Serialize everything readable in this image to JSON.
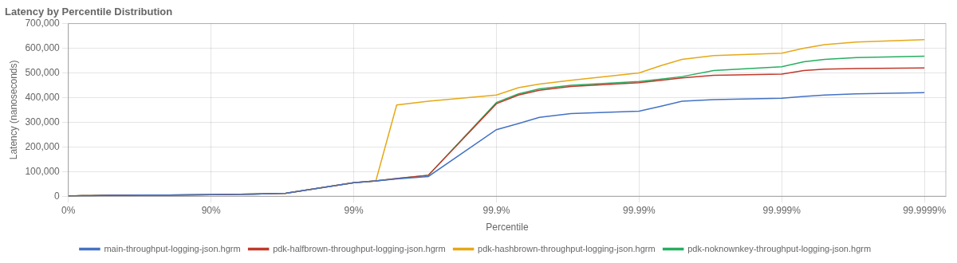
{
  "chart_data": {
    "type": "line",
    "title": "Latency by Percentile Distribution",
    "xlabel": "Percentile",
    "ylabel": "Latency (nanoseconds)",
    "x": [
      0,
      10,
      20,
      30,
      40,
      50,
      60,
      70,
      80,
      90,
      95,
      97,
      99,
      99.3,
      99.5,
      99.7,
      99.9,
      99.93,
      99.95,
      99.97,
      99.99,
      99.993,
      99.995,
      99.997,
      99.999,
      99.9993,
      99.9995,
      99.9997,
      99.9999
    ],
    "series": [
      {
        "name": "main-throughput-logging-json.hgrm",
        "color": "#4472c4",
        "values": [
          1000,
          1500,
          2000,
          2500,
          3000,
          3500,
          4000,
          4500,
          5000,
          6000,
          9000,
          12000,
          55000,
          62000,
          70000,
          80000,
          270000,
          295000,
          320000,
          335000,
          345000,
          365000,
          385000,
          392000,
          397000,
          405000,
          410000,
          415000,
          420000
        ]
      },
      {
        "name": "pdk-halfbrown-throughput-logging-json.hgrm",
        "color": "#c0392b",
        "values": [
          1000,
          1500,
          2000,
          2500,
          3000,
          3500,
          4000,
          4500,
          5000,
          6000,
          9000,
          12000,
          55000,
          62000,
          72000,
          85000,
          375000,
          410000,
          430000,
          445000,
          460000,
          470000,
          480000,
          490000,
          495000,
          510000,
          515000,
          518000,
          520000
        ]
      },
      {
        "name": "pdk-hashbrown-throughput-logging-json.hgrm",
        "color": "#e6a817",
        "values": [
          1000,
          1500,
          2000,
          2500,
          3000,
          3500,
          4000,
          4500,
          5000,
          6000,
          9000,
          12000,
          55000,
          62000,
          370000,
          385000,
          410000,
          440000,
          455000,
          470000,
          500000,
          530000,
          555000,
          570000,
          580000,
          600000,
          615000,
          625000,
          635000
        ]
      },
      {
        "name": "pdk-noknownkey-throughput-logging-json.hgrm",
        "color": "#27ae60",
        "values": [
          1000,
          1500,
          2000,
          2500,
          3000,
          3500,
          4000,
          4500,
          5000,
          6000,
          9000,
          12000,
          55000,
          62000,
          72000,
          85000,
          380000,
          415000,
          435000,
          450000,
          465000,
          475000,
          485000,
          510000,
          525000,
          545000,
          555000,
          562000,
          568000
        ]
      }
    ],
    "xlim": [
      0,
      99.9999292
    ],
    "xticks": [
      {
        "value": 0,
        "label": "0%"
      },
      {
        "value": 90,
        "label": "90%"
      },
      {
        "value": 99,
        "label": "99%"
      },
      {
        "value": 99.9,
        "label": "99.9%"
      },
      {
        "value": 99.99,
        "label": "99.99%"
      },
      {
        "value": 99.999,
        "label": "99.999%"
      },
      {
        "value": 99.9999,
        "label": "99.9999%"
      }
    ],
    "ylim": [
      0,
      700000
    ],
    "yticks": [
      0,
      {
        "value": 100000,
        "label": "100,000"
      },
      {
        "value": 200000,
        "label": "200,000"
      },
      {
        "value": 300000,
        "label": "300,000"
      },
      {
        "value": 400000,
        "label": "400,000"
      },
      {
        "value": 500000,
        "label": "500,000"
      },
      {
        "value": 600000,
        "label": "600,000"
      },
      {
        "value": 700000,
        "label": "700,000"
      }
    ],
    "grid": true,
    "legend": "bottom"
  }
}
